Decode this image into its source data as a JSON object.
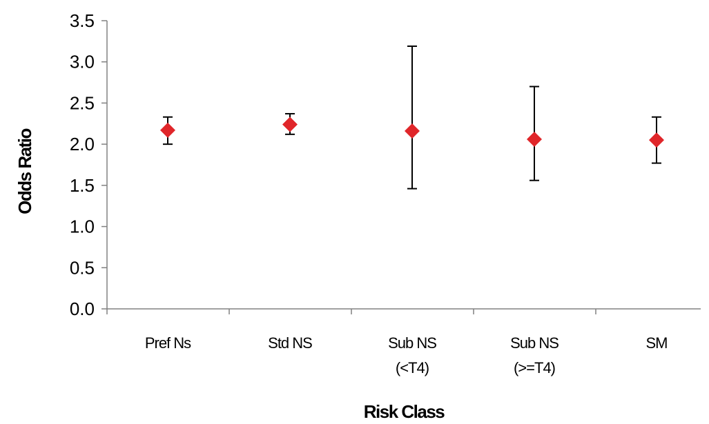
{
  "chart_data": {
    "type": "scatter",
    "title": "",
    "xlabel": "Risk Class",
    "ylabel": "Odds Ratio",
    "ylim": [
      0,
      3.5
    ],
    "yticks": [
      "0.0",
      "0.5",
      "1.0",
      "1.5",
      "2.0",
      "2.5",
      "3.0",
      "3.5"
    ],
    "categories": [
      [
        "Pref Ns"
      ],
      [
        "Std NS"
      ],
      [
        "Sub NS",
        "(<T4)"
      ],
      [
        "Sub NS",
        "(>=T4)"
      ],
      [
        "SM"
      ]
    ],
    "values": [
      2.17,
      2.24,
      2.16,
      2.06,
      2.05
    ],
    "error_low": [
      2.0,
      2.12,
      1.46,
      1.56,
      1.77
    ],
    "error_high": [
      2.33,
      2.37,
      3.19,
      2.7,
      2.33
    ],
    "marker": "diamond",
    "marker_color": "#e0262a",
    "grid": false,
    "legend": "none"
  }
}
